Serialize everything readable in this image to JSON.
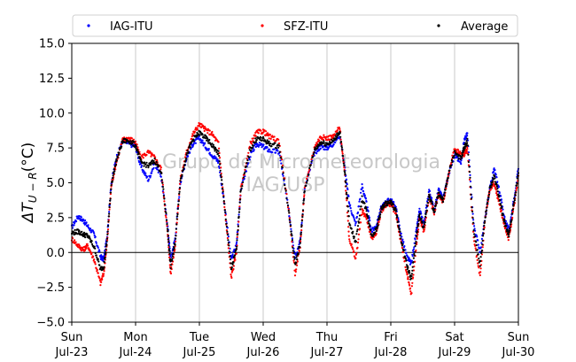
{
  "chart_data": {
    "type": "scatter",
    "ylabel": "ΔT_{U−R}(°C)",
    "ylabel_main": "ΔT",
    "ylabel_sub": "U − R",
    "ylabel_unit": "(°C)",
    "ylim": [
      -5.0,
      15.0
    ],
    "yticks": [
      -5.0,
      -2.5,
      0.0,
      2.5,
      5.0,
      7.5,
      10.0,
      12.5,
      15.0
    ],
    "ytick_labels": [
      "−5.0",
      "−2.5",
      "0.0",
      "2.5",
      "5.0",
      "7.5",
      "10.0",
      "12.5",
      "15.0"
    ],
    "xlim": [
      0,
      7
    ],
    "xticks": [
      {
        "day": "Sun",
        "date": "Jul-23"
      },
      {
        "day": "Mon",
        "date": "Jul-24"
      },
      {
        "day": "Tue",
        "date": "Jul-25"
      },
      {
        "day": "Wed",
        "date": "Jul-26"
      },
      {
        "day": "Thu",
        "date": "Jul-27"
      },
      {
        "day": "Fri",
        "date": "Jul-28"
      },
      {
        "day": "Sat",
        "date": "Jul-29"
      },
      {
        "day": "Sun",
        "date": "Jul-30"
      }
    ],
    "grid": "vertical",
    "reference_line": 0,
    "legend_position": "top",
    "watermark": [
      "Grupo de Micrometeorologia",
      "IAG/USP"
    ],
    "series": [
      {
        "name": "IAG-ITU",
        "color": "#0000ff",
        "points": [
          [
            0.0,
            1.8
          ],
          [
            0.1,
            2.6
          ],
          [
            0.18,
            2.3
          ],
          [
            0.25,
            1.9
          ],
          [
            0.35,
            1.3
          ],
          [
            0.45,
            -0.3
          ],
          [
            0.5,
            -0.5
          ],
          [
            0.55,
            1.0
          ],
          [
            0.62,
            5.0
          ],
          [
            0.7,
            6.8
          ],
          [
            0.8,
            8.0
          ],
          [
            0.9,
            7.8
          ],
          [
            1.0,
            7.6
          ],
          [
            1.08,
            6.2
          ],
          [
            1.2,
            5.2
          ],
          [
            1.3,
            6.4
          ],
          [
            1.4,
            5.5
          ],
          [
            1.5,
            2.0
          ],
          [
            1.55,
            -0.5
          ],
          [
            1.62,
            1.0
          ],
          [
            1.7,
            5.0
          ],
          [
            1.8,
            6.8
          ],
          [
            1.9,
            7.8
          ],
          [
            2.0,
            8.2
          ],
          [
            2.1,
            7.6
          ],
          [
            2.2,
            7.0
          ],
          [
            2.3,
            6.5
          ],
          [
            2.4,
            3.2
          ],
          [
            2.5,
            -0.5
          ],
          [
            2.58,
            0.5
          ],
          [
            2.65,
            4.5
          ],
          [
            2.8,
            7.0
          ],
          [
            2.9,
            7.8
          ],
          [
            3.0,
            7.6
          ],
          [
            3.1,
            7.3
          ],
          [
            3.25,
            7.2
          ],
          [
            3.4,
            3.0
          ],
          [
            3.5,
            -0.3
          ],
          [
            3.58,
            0.8
          ],
          [
            3.65,
            4.5
          ],
          [
            3.8,
            7.1
          ],
          [
            3.9,
            7.6
          ],
          [
            4.0,
            7.5
          ],
          [
            4.1,
            7.8
          ],
          [
            4.2,
            8.5
          ],
          [
            4.28,
            6.0
          ],
          [
            4.35,
            3.5
          ],
          [
            4.45,
            2.0
          ],
          [
            4.55,
            4.8
          ],
          [
            4.62,
            3.5
          ],
          [
            4.7,
            1.5
          ],
          [
            4.78,
            2.0
          ],
          [
            4.85,
            3.2
          ],
          [
            4.92,
            3.6
          ],
          [
            5.0,
            3.8
          ],
          [
            5.08,
            3.2
          ],
          [
            5.15,
            1.5
          ],
          [
            5.25,
            -0.3
          ],
          [
            5.32,
            -0.8
          ],
          [
            5.4,
            1.5
          ],
          [
            5.45,
            3.0
          ],
          [
            5.52,
            2.0
          ],
          [
            5.6,
            4.5
          ],
          [
            5.68,
            3.0
          ],
          [
            5.75,
            4.5
          ],
          [
            5.82,
            3.8
          ],
          [
            5.9,
            5.5
          ],
          [
            6.0,
            7.0
          ],
          [
            6.1,
            6.5
          ],
          [
            6.15,
            8.0
          ],
          [
            6.2,
            8.5
          ],
          [
            6.3,
            2.0
          ],
          [
            6.4,
            0.0
          ],
          [
            6.48,
            2.5
          ],
          [
            6.55,
            4.5
          ],
          [
            6.62,
            6.0
          ],
          [
            6.7,
            4.5
          ],
          [
            6.78,
            2.5
          ],
          [
            6.85,
            1.5
          ],
          [
            6.92,
            3.5
          ],
          [
            7.0,
            6.0
          ]
        ]
      },
      {
        "name": "SFZ-ITU",
        "color": "#ff0000",
        "points": [
          [
            0.0,
            1.0
          ],
          [
            0.1,
            0.5
          ],
          [
            0.18,
            0.2
          ],
          [
            0.25,
            0.5
          ],
          [
            0.35,
            -0.5
          ],
          [
            0.45,
            -2.2
          ],
          [
            0.5,
            -1.5
          ],
          [
            0.55,
            0.5
          ],
          [
            0.62,
            4.8
          ],
          [
            0.7,
            6.5
          ],
          [
            0.8,
            8.1
          ],
          [
            0.9,
            8.2
          ],
          [
            1.0,
            7.9
          ],
          [
            1.08,
            6.8
          ],
          [
            1.2,
            7.2
          ],
          [
            1.3,
            6.8
          ],
          [
            1.4,
            6.0
          ],
          [
            1.5,
            1.5
          ],
          [
            1.55,
            -1.5
          ],
          [
            1.62,
            0.5
          ],
          [
            1.7,
            5.2
          ],
          [
            1.8,
            7.2
          ],
          [
            1.9,
            8.5
          ],
          [
            2.0,
            9.2
          ],
          [
            2.1,
            8.8
          ],
          [
            2.2,
            8.5
          ],
          [
            2.3,
            7.8
          ],
          [
            2.4,
            3.0
          ],
          [
            2.5,
            -1.8
          ],
          [
            2.58,
            0.0
          ],
          [
            2.65,
            4.6
          ],
          [
            2.8,
            7.8
          ],
          [
            2.9,
            8.6
          ],
          [
            3.0,
            8.7
          ],
          [
            3.1,
            8.3
          ],
          [
            3.25,
            8.0
          ],
          [
            3.4,
            3.0
          ],
          [
            3.5,
            -1.5
          ],
          [
            3.58,
            0.5
          ],
          [
            3.65,
            4.5
          ],
          [
            3.8,
            7.5
          ],
          [
            3.9,
            8.3
          ],
          [
            4.0,
            8.2
          ],
          [
            4.1,
            8.3
          ],
          [
            4.2,
            9.0
          ],
          [
            4.28,
            5.5
          ],
          [
            4.35,
            1.0
          ],
          [
            4.45,
            -0.5
          ],
          [
            4.55,
            3.0
          ],
          [
            4.62,
            2.5
          ],
          [
            4.7,
            1.0
          ],
          [
            4.78,
            1.5
          ],
          [
            4.85,
            3.0
          ],
          [
            4.92,
            3.4
          ],
          [
            5.0,
            3.5
          ],
          [
            5.08,
            2.8
          ],
          [
            5.15,
            1.0
          ],
          [
            5.25,
            -1.5
          ],
          [
            5.32,
            -3.0
          ],
          [
            5.4,
            0.5
          ],
          [
            5.45,
            2.5
          ],
          [
            5.52,
            1.5
          ],
          [
            5.6,
            4.0
          ],
          [
            5.68,
            2.8
          ],
          [
            5.75,
            4.2
          ],
          [
            5.82,
            3.6
          ],
          [
            5.9,
            5.5
          ],
          [
            6.0,
            7.5
          ],
          [
            6.1,
            7.0
          ],
          [
            6.15,
            7.0
          ],
          [
            6.2,
            7.5
          ],
          [
            6.3,
            1.0
          ],
          [
            6.4,
            -1.8
          ],
          [
            6.48,
            2.5
          ],
          [
            6.55,
            4.5
          ],
          [
            6.62,
            5.0
          ],
          [
            6.7,
            3.5
          ],
          [
            6.78,
            2.0
          ],
          [
            6.85,
            1.0
          ],
          [
            6.92,
            3.0
          ],
          [
            7.0,
            5.5
          ]
        ]
      },
      {
        "name": "Average",
        "color": "#000000",
        "points": [
          [
            0.0,
            1.4
          ],
          [
            0.1,
            1.5
          ],
          [
            0.18,
            1.3
          ],
          [
            0.25,
            1.2
          ],
          [
            0.35,
            0.4
          ],
          [
            0.45,
            -1.2
          ],
          [
            0.5,
            -1.0
          ],
          [
            0.55,
            0.7
          ],
          [
            0.62,
            4.9
          ],
          [
            0.7,
            6.6
          ],
          [
            0.8,
            8.0
          ],
          [
            0.9,
            8.0
          ],
          [
            1.0,
            7.7
          ],
          [
            1.08,
            6.5
          ],
          [
            1.2,
            6.2
          ],
          [
            1.3,
            6.6
          ],
          [
            1.4,
            5.8
          ],
          [
            1.5,
            1.8
          ],
          [
            1.55,
            -1.0
          ],
          [
            1.62,
            0.7
          ],
          [
            1.7,
            5.1
          ],
          [
            1.8,
            7.0
          ],
          [
            1.9,
            8.1
          ],
          [
            2.0,
            8.6
          ],
          [
            2.1,
            8.2
          ],
          [
            2.2,
            7.7
          ],
          [
            2.3,
            7.1
          ],
          [
            2.4,
            3.1
          ],
          [
            2.5,
            -1.2
          ],
          [
            2.58,
            0.2
          ],
          [
            2.65,
            4.5
          ],
          [
            2.8,
            7.4
          ],
          [
            2.9,
            8.2
          ],
          [
            3.0,
            8.1
          ],
          [
            3.1,
            7.8
          ],
          [
            3.25,
            7.6
          ],
          [
            3.4,
            3.0
          ],
          [
            3.5,
            -0.9
          ],
          [
            3.58,
            0.6
          ],
          [
            3.65,
            4.5
          ],
          [
            3.8,
            7.3
          ],
          [
            3.9,
            7.9
          ],
          [
            4.0,
            7.8
          ],
          [
            4.1,
            8.0
          ],
          [
            4.2,
            8.7
          ],
          [
            4.28,
            5.7
          ],
          [
            4.35,
            2.2
          ],
          [
            4.45,
            0.7
          ],
          [
            4.55,
            3.9
          ],
          [
            4.62,
            3.0
          ],
          [
            4.7,
            1.2
          ],
          [
            4.78,
            1.7
          ],
          [
            4.85,
            3.1
          ],
          [
            4.92,
            3.5
          ],
          [
            5.0,
            3.6
          ],
          [
            5.08,
            3.0
          ],
          [
            5.15,
            1.2
          ],
          [
            5.25,
            -0.9
          ],
          [
            5.32,
            -1.9
          ],
          [
            5.4,
            1.0
          ],
          [
            5.45,
            2.7
          ],
          [
            5.52,
            1.7
          ],
          [
            5.6,
            4.2
          ],
          [
            5.68,
            2.9
          ],
          [
            5.75,
            4.3
          ],
          [
            5.82,
            3.7
          ],
          [
            5.9,
            5.5
          ],
          [
            6.0,
            7.2
          ],
          [
            6.1,
            6.7
          ],
          [
            6.15,
            7.5
          ],
          [
            6.2,
            8.0
          ],
          [
            6.3,
            1.5
          ],
          [
            6.4,
            -0.9
          ],
          [
            6.48,
            2.5
          ],
          [
            6.55,
            4.5
          ],
          [
            6.62,
            5.5
          ],
          [
            6.7,
            4.0
          ],
          [
            6.78,
            2.2
          ],
          [
            6.85,
            1.2
          ],
          [
            6.92,
            3.2
          ],
          [
            7.0,
            5.7
          ]
        ]
      }
    ]
  }
}
